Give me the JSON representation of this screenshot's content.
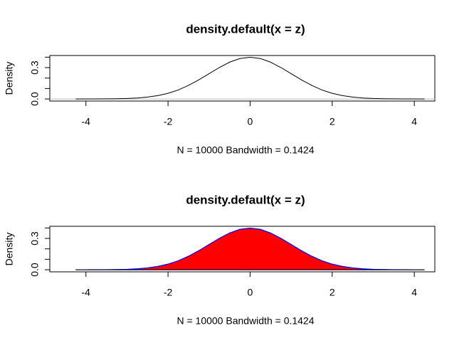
{
  "chart_data": [
    {
      "type": "line",
      "title": "density.default(x = z)",
      "xlabel": "N = 10000   Bandwidth = 0.1424",
      "ylabel": "Density",
      "x": [
        -4.25,
        -4,
        -3.75,
        -3.5,
        -3.25,
        -3,
        -2.75,
        -2.5,
        -2.25,
        -2,
        -1.75,
        -1.5,
        -1.25,
        -1,
        -0.75,
        -0.5,
        -0.25,
        0,
        0.25,
        0.5,
        0.75,
        1,
        1.25,
        1.5,
        1.75,
        2,
        2.25,
        2.5,
        2.75,
        3,
        3.25,
        3.5,
        3.75,
        4,
        4.25
      ],
      "values": [
        0,
        0.0001,
        0.0004,
        0.0009,
        0.002,
        0.0044,
        0.009,
        0.018,
        0.032,
        0.054,
        0.086,
        0.13,
        0.183,
        0.242,
        0.301,
        0.352,
        0.387,
        0.399,
        0.387,
        0.352,
        0.301,
        0.242,
        0.183,
        0.13,
        0.086,
        0.054,
        0.032,
        0.018,
        0.009,
        0.0044,
        0.002,
        0.0009,
        0.0004,
        0.0001,
        0
      ],
      "color": "#000000",
      "zero_line": true,
      "zero_line_color": "#bebebe",
      "xlim": [
        -4.88,
        4.5
      ],
      "ylim": [
        -0.02,
        0.416
      ],
      "xticks": [
        -4,
        -2,
        0,
        2,
        4
      ],
      "yticks": [
        {
          "value": 0,
          "label": "0.0"
        },
        {
          "value": 0.1,
          "label": null
        },
        {
          "value": 0.2,
          "label": null
        },
        {
          "value": 0.3,
          "label": "0.3"
        },
        {
          "value": 0.4,
          "label": null
        }
      ]
    },
    {
      "type": "area",
      "title": "density.default(x = z)",
      "xlabel": "N = 10000   Bandwidth = 0.1424",
      "ylabel": "Density",
      "x": [
        -4.25,
        -4,
        -3.75,
        -3.5,
        -3.25,
        -3,
        -2.75,
        -2.5,
        -2.25,
        -2,
        -1.75,
        -1.5,
        -1.25,
        -1,
        -0.75,
        -0.5,
        -0.25,
        0,
        0.25,
        0.5,
        0.75,
        1,
        1.25,
        1.5,
        1.75,
        2,
        2.25,
        2.5,
        2.75,
        3,
        3.25,
        3.5,
        3.75,
        4,
        4.25
      ],
      "values": [
        0,
        0.0001,
        0.0004,
        0.0009,
        0.002,
        0.0044,
        0.009,
        0.018,
        0.032,
        0.054,
        0.086,
        0.13,
        0.183,
        0.242,
        0.301,
        0.352,
        0.387,
        0.399,
        0.387,
        0.352,
        0.301,
        0.242,
        0.183,
        0.13,
        0.086,
        0.054,
        0.032,
        0.018,
        0.009,
        0.0044,
        0.002,
        0.0009,
        0.0004,
        0.0001,
        0
      ],
      "color": "#000000",
      "fill": "#ff0000",
      "border_color": "#0000ff",
      "zero_line": false,
      "xlim": [
        -4.88,
        4.5
      ],
      "ylim": [
        -0.02,
        0.416
      ],
      "xticks": [
        -4,
        -2,
        0,
        2,
        4
      ],
      "yticks": [
        {
          "value": 0,
          "label": "0.0"
        },
        {
          "value": 0.1,
          "label": null
        },
        {
          "value": 0.2,
          "label": null
        },
        {
          "value": 0.3,
          "label": "0.3"
        },
        {
          "value": 0.4,
          "label": null
        }
      ]
    }
  ]
}
